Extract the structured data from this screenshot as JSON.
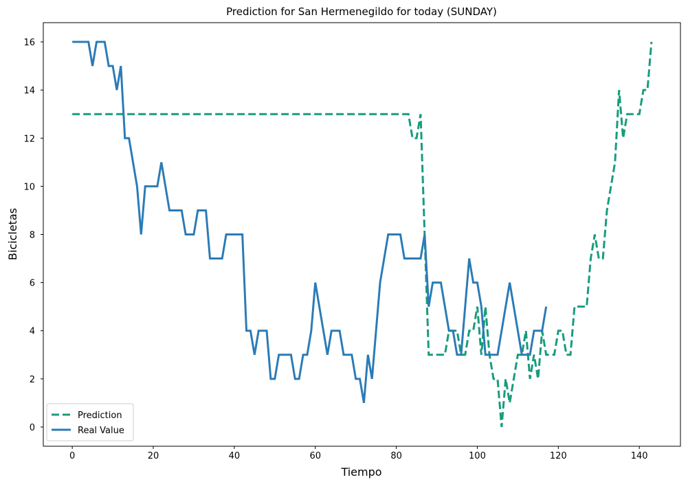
{
  "chart_data": {
    "type": "line",
    "title": "Prediction for San Hermenegildo for today (SUNDAY)",
    "x_label": "Tiempo",
    "y_label": "Bicicletas",
    "xlim": [
      -7.15,
      150.15
    ],
    "xticks": [
      0,
      20,
      40,
      60,
      80,
      100,
      120,
      140
    ],
    "ylim": [
      -0.8,
      16.8
    ],
    "yticks": [
      0,
      2,
      4,
      6,
      8,
      10,
      12,
      14,
      16
    ],
    "grid": false,
    "legend": "lower left",
    "series": [
      {
        "name": "Prediction",
        "color": "#179c7d",
        "dashed": true,
        "values": [
          13,
          13,
          13,
          13,
          13,
          13,
          13,
          13,
          13,
          13,
          13,
          13,
          13,
          13,
          13,
          13,
          13,
          13,
          13,
          13,
          13,
          13,
          13,
          13,
          13,
          13,
          13,
          13,
          13,
          13,
          13,
          13,
          13,
          13,
          13,
          13,
          13,
          13,
          13,
          13,
          13,
          13,
          13,
          13,
          13,
          13,
          13,
          13,
          13,
          13,
          13,
          13,
          13,
          13,
          13,
          13,
          13,
          13,
          13,
          13,
          13,
          13,
          13,
          13,
          13,
          13,
          13,
          13,
          13,
          13,
          13,
          13,
          13,
          13,
          13,
          13,
          13,
          13,
          13,
          13,
          13,
          13,
          13,
          13,
          12,
          12,
          13,
          8,
          3,
          3,
          3,
          3,
          3,
          4,
          4,
          4,
          3,
          3,
          4,
          4,
          5,
          3,
          5,
          3,
          2,
          2,
          0,
          2,
          1,
          2,
          3,
          3,
          4,
          2,
          3,
          2,
          4,
          3,
          3,
          3,
          4,
          4,
          3,
          3,
          5,
          5,
          5,
          5,
          7,
          8,
          7,
          7,
          9,
          10,
          11,
          14,
          12,
          13,
          13,
          13,
          13,
          14,
          14,
          16
        ]
      },
      {
        "name": "Real Value",
        "color": "#2b7bb6",
        "dashed": false,
        "values": [
          16,
          16,
          16,
          16,
          16,
          15,
          16,
          16,
          16,
          15,
          15,
          14,
          15,
          12,
          12,
          11,
          10,
          8,
          10,
          10,
          10,
          10,
          11,
          10,
          9,
          9,
          9,
          9,
          8,
          8,
          8,
          9,
          9,
          9,
          7,
          7,
          7,
          7,
          8,
          8,
          8,
          8,
          8,
          4,
          4,
          3,
          4,
          4,
          4,
          2,
          2,
          3,
          3,
          3,
          3,
          2,
          2,
          3,
          3,
          4,
          6,
          5,
          4,
          3,
          4,
          4,
          4,
          3,
          3,
          3,
          2,
          2,
          1,
          3,
          2,
          4,
          6,
          7,
          8,
          8,
          8,
          8,
          7,
          7,
          7,
          7,
          7,
          8,
          5,
          6,
          6,
          6,
          5,
          4,
          4,
          3,
          3,
          5,
          7,
          6,
          6,
          5,
          3,
          3,
          3,
          3,
          4,
          5,
          6,
          5,
          4,
          3,
          3,
          3,
          4,
          4,
          4,
          5
        ]
      }
    ]
  }
}
